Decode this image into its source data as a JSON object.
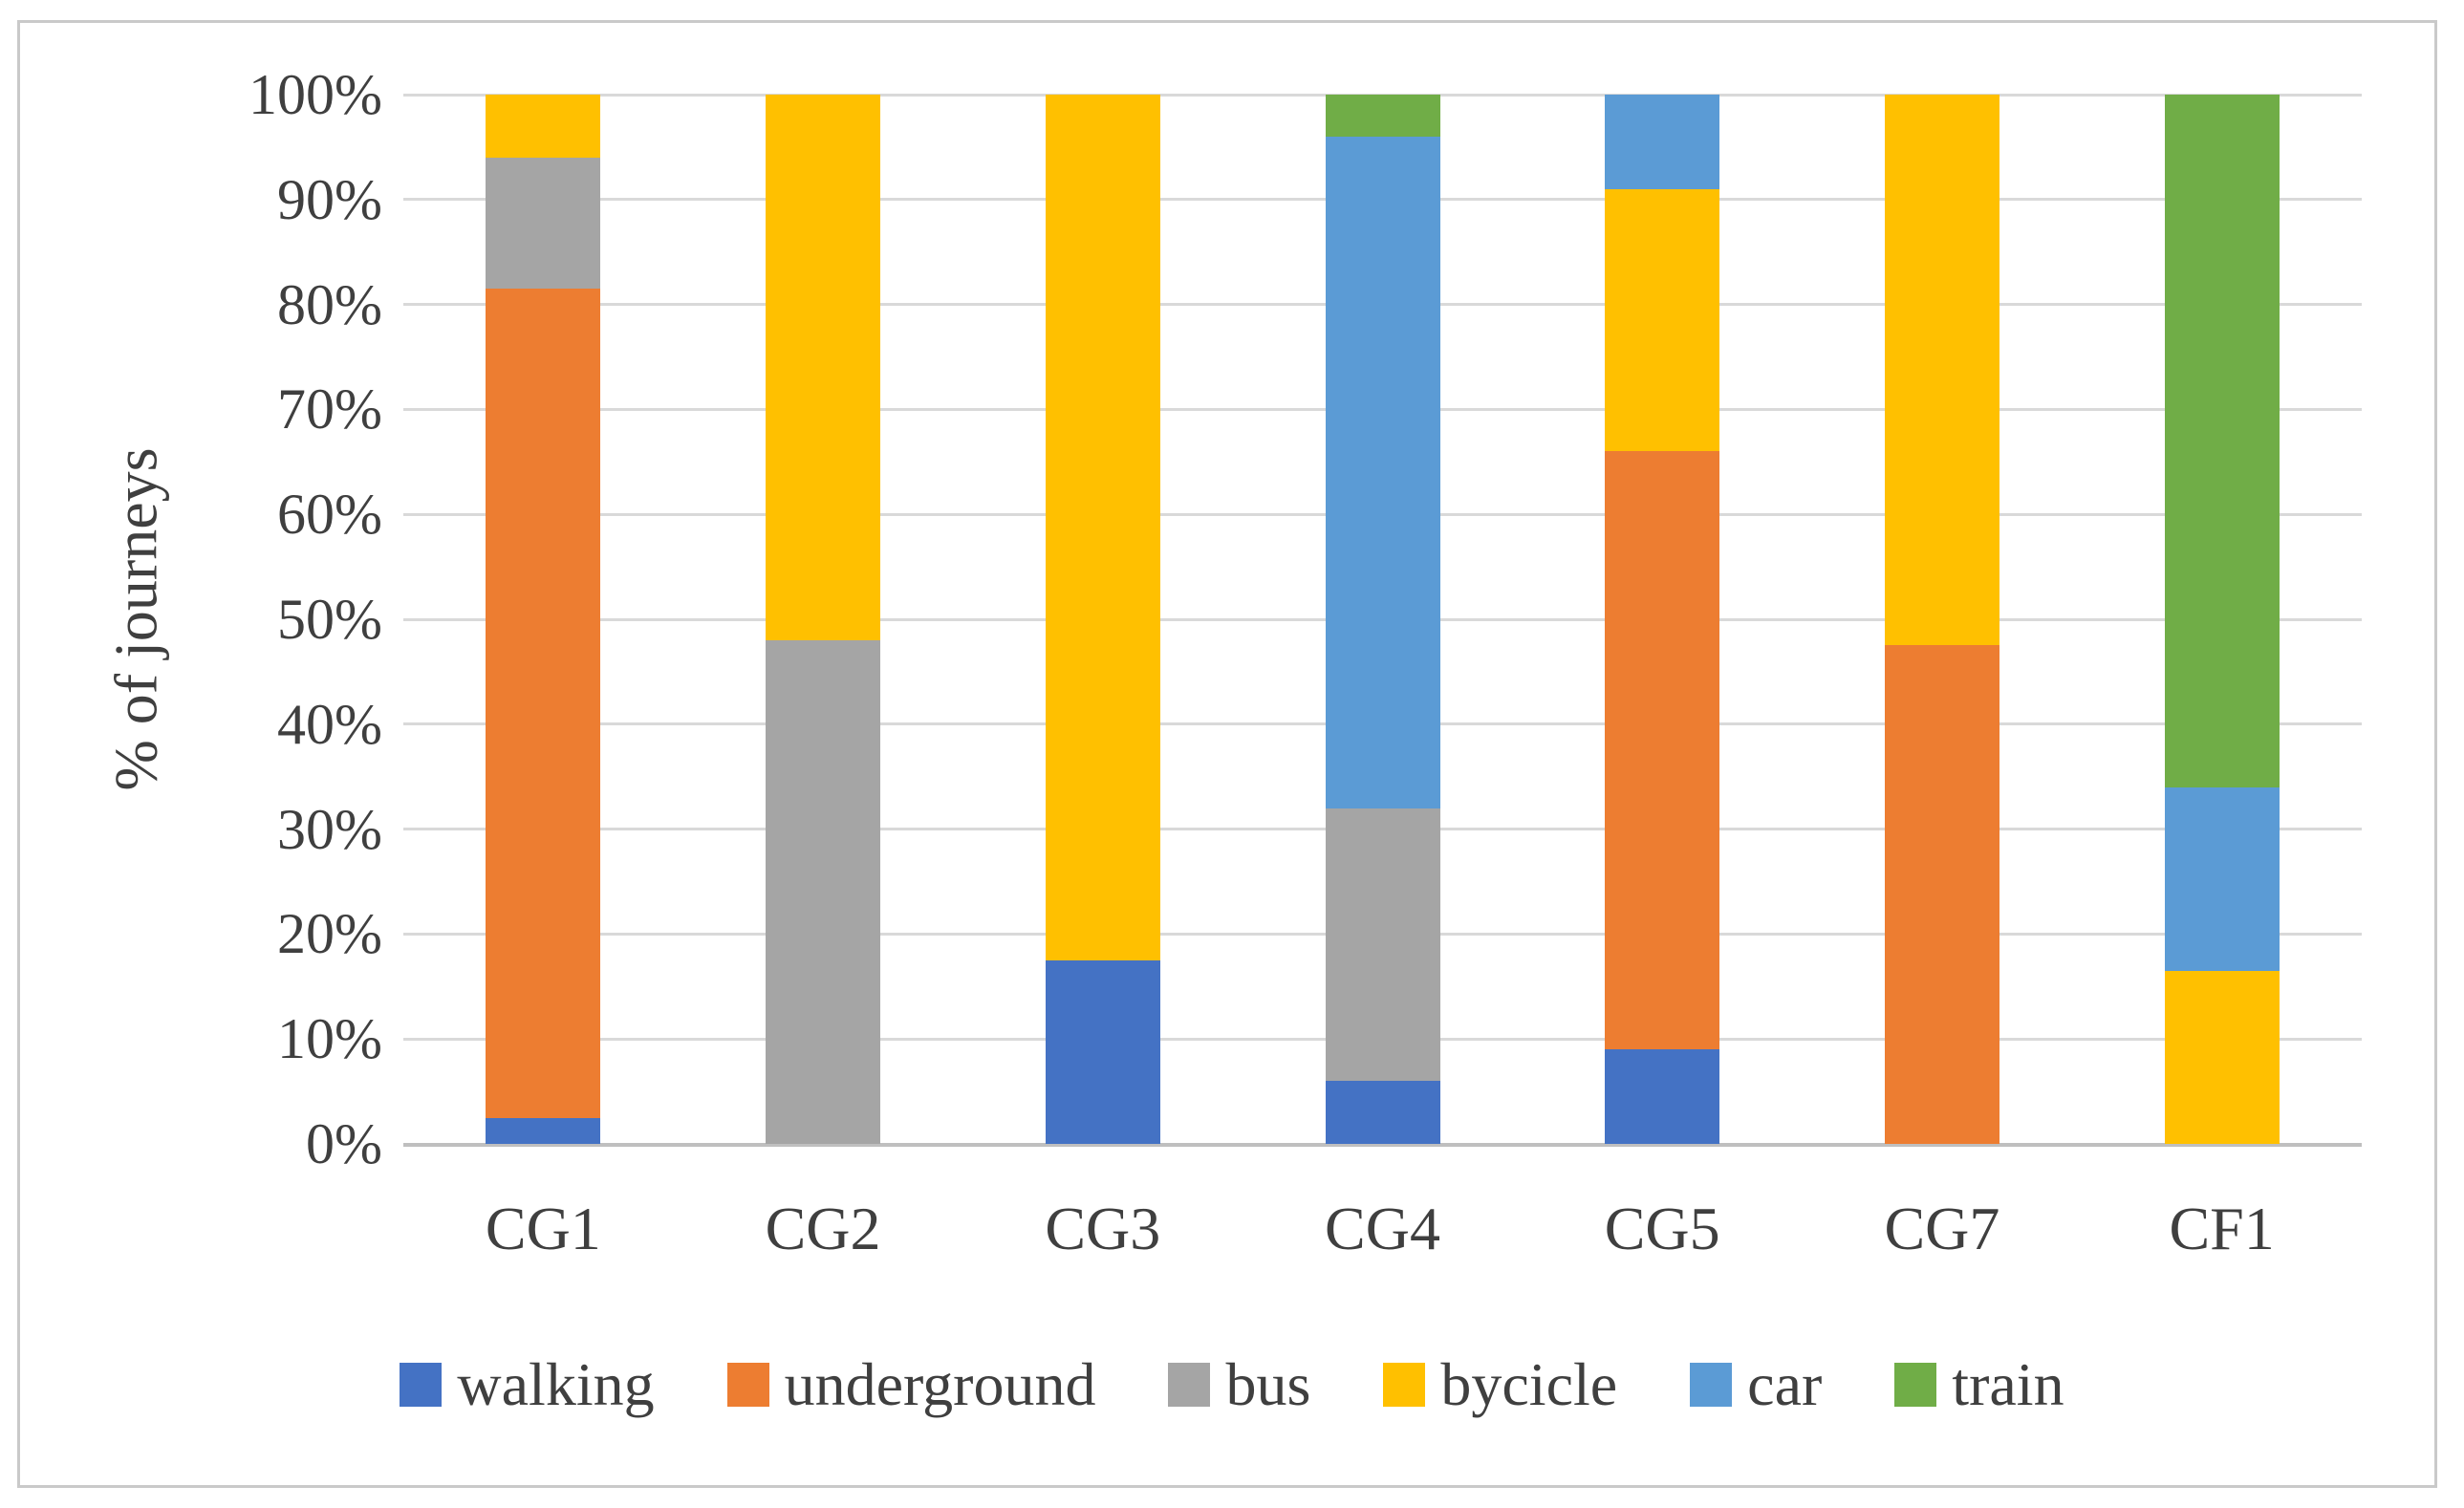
{
  "axis": {
    "y_title": "% of journeys"
  },
  "colors": {
    "walking": "#4472C4",
    "underground": "#ED7D31",
    "bus": "#A5A5A5",
    "bycicle": "#FFC000",
    "car": "#5B9BD5",
    "train": "#70AD47",
    "gridline": "#D9D9D9",
    "axis_line": "#BFBFBF",
    "text": "#3F3F3F",
    "frame_border": "#C9C9C9"
  },
  "chart_data": {
    "type": "bar",
    "stacked": true,
    "percent_stacked": true,
    "title": "",
    "xlabel": "",
    "ylabel": "% of journeys",
    "ylim": [
      0,
      100
    ],
    "y_tick_step": 10,
    "y_ticks": [
      "100%",
      "90%",
      "80%",
      "70%",
      "60%",
      "50%",
      "40%",
      "30%",
      "20%",
      "10%",
      "0%"
    ],
    "grid": true,
    "legend_position": "bottom",
    "categories": [
      "CG1",
      "CG2",
      "CG3",
      "CG4",
      "CG5",
      "CG7",
      "CF1"
    ],
    "series": [
      {
        "name": "walking",
        "color": "#4472C4",
        "values": [
          2.5,
          0,
          17.5,
          6,
          9,
          0,
          0
        ]
      },
      {
        "name": "underground",
        "color": "#ED7D31",
        "values": [
          79,
          0,
          0,
          0,
          57,
          47.5,
          0
        ]
      },
      {
        "name": "bus",
        "color": "#A5A5A5",
        "values": [
          12.5,
          48,
          0,
          26,
          0,
          0,
          0
        ]
      },
      {
        "name": "bycicle",
        "color": "#FFC000",
        "values": [
          6,
          52,
          82.5,
          0,
          25,
          52.5,
          16.5
        ]
      },
      {
        "name": "car",
        "color": "#5B9BD5",
        "values": [
          0,
          0,
          0,
          64,
          9,
          0,
          17.5
        ]
      },
      {
        "name": "train",
        "color": "#70AD47",
        "values": [
          0,
          0,
          0,
          4,
          0,
          0,
          66
        ]
      }
    ]
  }
}
